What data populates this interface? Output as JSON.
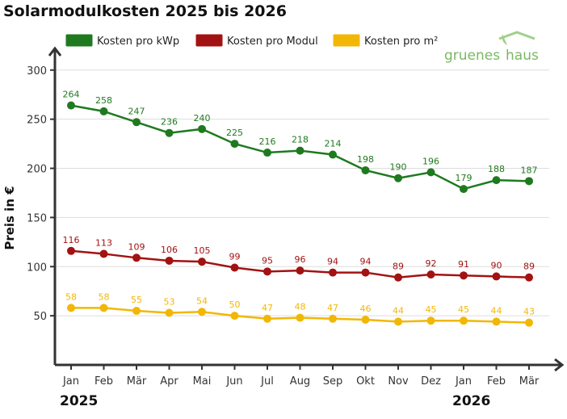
{
  "chart_data": {
    "type": "line",
    "title": "Solarmodulkosten 2025 bis 2026",
    "y_label": "Preis in €",
    "brand": [
      "gruenes",
      "haus"
    ],
    "categories": [
      "Jan",
      "Feb",
      "Mär",
      "Apr",
      "Mai",
      "Jun",
      "Jul",
      "Aug",
      "Sep",
      "Okt",
      "Nov",
      "Dez",
      "Jan",
      "Feb",
      "Mär"
    ],
    "year_labels": [
      "2025",
      "2026"
    ],
    "series": [
      {
        "name": "Kosten pro kWp",
        "color": "#1f7a1f",
        "values": [
          264,
          258,
          247,
          236,
          240,
          225,
          216,
          218,
          214,
          198,
          190,
          196,
          179,
          188,
          187
        ]
      },
      {
        "name": "Kosten pro Modul",
        "color": "#a31212",
        "values": [
          116,
          113,
          109,
          106,
          105,
          99,
          95,
          96,
          94,
          94,
          89,
          92,
          91,
          90,
          89
        ]
      },
      {
        "name": "Kosten pro m²",
        "color": "#f2b705",
        "values": [
          58,
          58,
          55,
          53,
          54,
          50,
          47,
          48,
          47,
          46,
          44,
          45,
          45,
          44,
          43
        ]
      }
    ],
    "ylim": [
      0,
      322
    ],
    "yticks": [
      50,
      100,
      150,
      200,
      250,
      300
    ],
    "grid": true,
    "legend": "top"
  }
}
